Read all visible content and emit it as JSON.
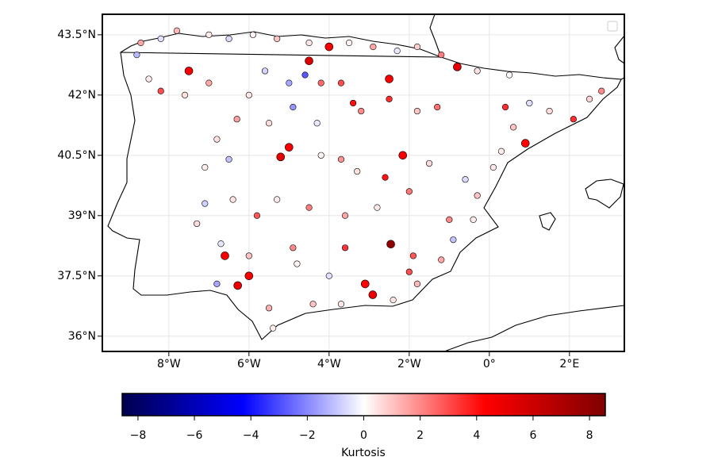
{
  "chart_data": {
    "type": "scatter",
    "xlim": [
      -9.66,
      3.37
    ],
    "ylim": [
      35.62,
      44.01
    ],
    "xticks": [
      {
        "value": -8,
        "label": "8°W"
      },
      {
        "value": -6,
        "label": "6°W"
      },
      {
        "value": -4,
        "label": "4°W"
      },
      {
        "value": -2,
        "label": "2°W"
      },
      {
        "value": 0,
        "label": "0°"
      },
      {
        "value": 2,
        "label": "2°E"
      }
    ],
    "yticks": [
      {
        "value": 36,
        "label": "36°N"
      },
      {
        "value": 37.5,
        "label": "37.5°N"
      },
      {
        "value": 39,
        "label": "39°N"
      },
      {
        "value": 40.5,
        "label": "40.5°N"
      },
      {
        "value": 42,
        "label": "42°N"
      },
      {
        "value": 43.5,
        "label": "43.5°N"
      }
    ],
    "grid": true,
    "colormap": "seismic",
    "clim": [
      -8.56,
      8.56
    ],
    "colorbar_label": "Kurtosis",
    "cticks": [
      {
        "value": -8,
        "label": "−8"
      },
      {
        "value": -6,
        "label": "−6"
      },
      {
        "value": -4,
        "label": "−4"
      },
      {
        "value": -2,
        "label": "−2"
      },
      0,
      2,
      4,
      6,
      8
    ],
    "x": [
      -8.7,
      -8.2,
      -7.8,
      -7.0,
      -6.5,
      -5.9,
      -5.3,
      -4.5,
      -4.0,
      -3.5,
      -2.9,
      -2.3,
      -1.8,
      -1.2,
      -0.8,
      -0.3,
      0.5,
      -8.8,
      -8.5,
      -8.2,
      -7.5,
      -7.6,
      -7.0,
      1.0,
      1.5,
      2.1,
      2.5,
      2.8,
      0.4,
      0.6,
      0.9,
      0.3,
      -6.0,
      -5.6,
      -5.0,
      -4.6,
      -4.5,
      -4.2,
      -3.7,
      -3.4,
      -3.2,
      -2.5,
      -2.5,
      -1.8,
      -1.3,
      -4.9,
      -4.3,
      -5.5,
      -6.3,
      -6.8,
      -6.5,
      -7.1,
      -5.21,
      -5.0,
      -4.2,
      -3.7,
      -3.3,
      -2.6,
      -2.16,
      -1.5,
      -2.0,
      -2.8,
      -3.6,
      -4.5,
      -5.3,
      -5.8,
      -6.4,
      -7.1,
      -7.3,
      -6.7,
      -6.0,
      -4.9,
      -3.6,
      -2.46,
      -1.9,
      -1.2,
      -0.9,
      -0.4,
      -0.3,
      -0.6,
      0.1,
      -1.0,
      -6.28,
      -6.8,
      -6.0,
      -5.5,
      -5.4,
      -4.4,
      -3.7,
      -2.91,
      -2.4,
      -1.8,
      -2.0,
      -3.1,
      -4.0,
      -4.8,
      -6.6
    ],
    "y": [
      43.3,
      43.4,
      43.6,
      43.5,
      43.4,
      43.5,
      43.4,
      43.3,
      43.2,
      43.3,
      43.2,
      43.1,
      43.2,
      43.0,
      42.7,
      42.6,
      42.5,
      43.0,
      42.4,
      42.1,
      42.6,
      42.0,
      42.3,
      41.8,
      41.6,
      41.4,
      41.9,
      42.1,
      41.7,
      41.2,
      40.8,
      40.6,
      42.0,
      42.6,
      42.3,
      42.5,
      42.85,
      42.3,
      42.3,
      41.8,
      41.6,
      41.9,
      42.4,
      41.6,
      41.7,
      41.7,
      41.3,
      41.3,
      41.4,
      40.9,
      40.4,
      40.2,
      40.46,
      40.7,
      40.5,
      40.4,
      40.1,
      39.95,
      40.5,
      40.3,
      39.6,
      39.2,
      39.0,
      39.2,
      39.4,
      39.0,
      39.4,
      39.3,
      38.8,
      38.3,
      38.0,
      38.2,
      38.2,
      38.29,
      38.0,
      37.9,
      38.4,
      38.9,
      39.5,
      39.9,
      40.2,
      38.9,
      37.26,
      37.3,
      37.5,
      36.7,
      36.2,
      36.8,
      36.8,
      37.03,
      36.9,
      37.3,
      37.6,
      37.3,
      37.5,
      37.8,
      38.0
    ],
    "values": [
      1.5,
      -0.5,
      1.2,
      0.3,
      -0.6,
      0.2,
      1.0,
      0.4,
      4.5,
      0.2,
      1.5,
      -0.4,
      0.8,
      2.2,
      5.2,
      0.5,
      0.1,
      -1.2,
      0.3,
      3.0,
      4.5,
      0.5,
      1.5,
      -0.5,
      0.6,
      3.5,
      0.7,
      2.0,
      3.5,
      1.0,
      4.2,
      0.3,
      0.4,
      -0.7,
      -1.5,
      -2.8,
      5.5,
      2.5,
      3.0,
      4.0,
      2.0,
      3.5,
      4.5,
      1.0,
      2.4,
      -1.8,
      -0.4,
      0.6,
      1.6,
      0.5,
      -1.0,
      0.3,
      5.0,
      4.5,
      0.2,
      1.8,
      0.5,
      4.0,
      4.5,
      0.6,
      2.3,
      0.4,
      1.5,
      2.2,
      0.3,
      2.8,
      0.5,
      -0.8,
      0.6,
      -0.4,
      1.0,
      2.0,
      3.4,
      8.0,
      2.8,
      1.5,
      -1.0,
      0.3,
      1.0,
      -0.6,
      0.4,
      2.0,
      5.0,
      -1.5,
      4.5,
      1.3,
      0.3,
      1.0,
      0.4,
      5.0,
      0.5,
      1.2,
      3.0,
      4.2,
      -0.5,
      0.2,
      4.5
    ]
  }
}
